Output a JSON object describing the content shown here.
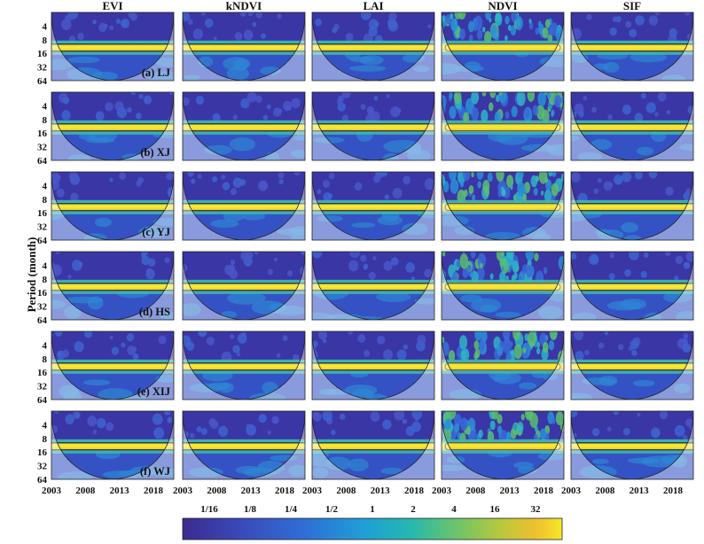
{
  "chart_data": {
    "type": "heatmap",
    "title": "",
    "columns": [
      "EVI",
      "kNDVI",
      "LAI",
      "NDVI",
      "SIF"
    ],
    "rows": [
      "(a) LJ",
      "(b) XJ",
      "(c) YJ",
      "(d) HS",
      "(e) XIJ",
      "(f) WJ"
    ],
    "ylabel": "Period (month)",
    "y_ticks": [
      "4",
      "8",
      "16",
      "32",
      "64"
    ],
    "y_scale": "log2",
    "ylim": [
      2,
      64
    ],
    "x_ticks": [
      "2003",
      "2008",
      "2013",
      "2018"
    ],
    "xlim": [
      2003,
      2021
    ],
    "dominant_period_months": 12,
    "colorbar": {
      "tick_labels": [
        "1/16",
        "1/8",
        "1/4",
        "1/2",
        "1",
        "2",
        "4",
        "16",
        "32"
      ],
      "colors": [
        "#3b2b8f",
        "#3949b8",
        "#2f6fd6",
        "#1f9fd6",
        "#25b8b0",
        "#6cc46a",
        "#b9c83c",
        "#eec02f",
        "#f6e627"
      ]
    }
  }
}
